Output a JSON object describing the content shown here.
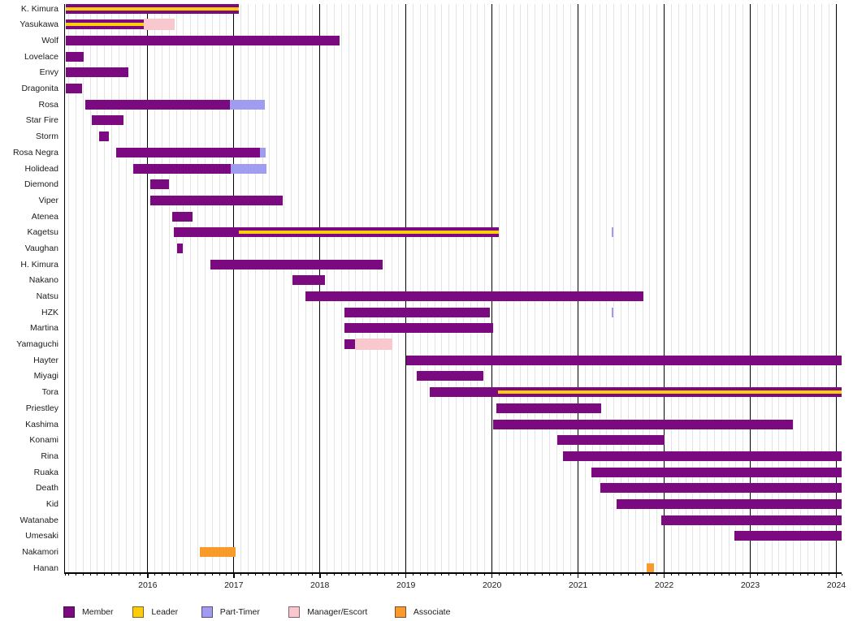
{
  "chart_data": {
    "type": "gantt-timeline",
    "x_axis": {
      "period_start": 2015.046,
      "period_end": 2024.066,
      "year_labels": [
        "2016",
        "2017",
        "2018",
        "2019",
        "2020",
        "2021",
        "2022",
        "2023",
        "2024"
      ],
      "minor_grid": "monthly",
      "grid": true
    },
    "legend_position": "bottom-left",
    "legend": [
      {
        "id": "member",
        "label": "Member",
        "color": "#7b0a80"
      },
      {
        "id": "leader",
        "label": "Leader",
        "color": "#fccd0a"
      },
      {
        "id": "part_timer",
        "label": "Part-Timer",
        "color": "#a09cef"
      },
      {
        "id": "manager",
        "label": "Manager/Escort",
        "color": "#f8c8ce"
      },
      {
        "id": "associate",
        "label": "Associate",
        "color": "#f89b2a"
      }
    ],
    "rows": [
      {
        "label": "K. Kimura",
        "segments": [
          {
            "role": "member",
            "start": 2015.046,
            "end": 2017.057
          },
          {
            "role": "leader",
            "start": 2015.046,
            "end": 2017.057
          }
        ]
      },
      {
        "label": "Yasukawa",
        "segments": [
          {
            "role": "member",
            "start": 2015.046,
            "end": 2015.956
          },
          {
            "role": "leader",
            "start": 2015.046,
            "end": 2015.956
          },
          {
            "role": "manager",
            "start": 2015.956,
            "end": 2016.315
          }
        ]
      },
      {
        "label": "Wolf",
        "segments": [
          {
            "role": "member",
            "start": 2015.046,
            "end": 2018.228
          }
        ]
      },
      {
        "label": "Lovelace",
        "segments": [
          {
            "role": "member",
            "start": 2015.046,
            "end": 2015.254
          }
        ]
      },
      {
        "label": "Envy",
        "segments": [
          {
            "role": "member",
            "start": 2015.046,
            "end": 2015.775
          }
        ]
      },
      {
        "label": "Dragonita",
        "segments": [
          {
            "role": "member",
            "start": 2015.046,
            "end": 2015.233
          }
        ]
      },
      {
        "label": "Rosa",
        "segments": [
          {
            "role": "member",
            "start": 2015.272,
            "end": 2016.959
          },
          {
            "role": "part_timer",
            "start": 2016.959,
            "end": 2017.365
          }
        ]
      },
      {
        "label": "Star Fire",
        "segments": [
          {
            "role": "member",
            "start": 2015.352,
            "end": 2015.722
          }
        ]
      },
      {
        "label": "Storm",
        "segments": [
          {
            "role": "member",
            "start": 2015.435,
            "end": 2015.549
          }
        ]
      },
      {
        "label": "Rosa Negra",
        "segments": [
          {
            "role": "member",
            "start": 2015.632,
            "end": 2017.307
          },
          {
            "role": "part_timer",
            "start": 2017.307,
            "end": 2017.369
          }
        ]
      },
      {
        "label": "Holidead",
        "segments": [
          {
            "role": "member",
            "start": 2015.83,
            "end": 2016.963
          },
          {
            "role": "part_timer",
            "start": 2016.963,
            "end": 2017.376
          }
        ]
      },
      {
        "label": "Diemond",
        "segments": [
          {
            "role": "member",
            "start": 2016.031,
            "end": 2016.243
          }
        ]
      },
      {
        "label": "Viper",
        "segments": [
          {
            "role": "member",
            "start": 2016.031,
            "end": 2017.573
          }
        ]
      },
      {
        "label": "Atenea",
        "segments": [
          {
            "role": "member",
            "start": 2016.285,
            "end": 2016.518
          }
        ]
      },
      {
        "label": "Kagetsu",
        "segments": [
          {
            "role": "member",
            "start": 2016.305,
            "end": 2020.078
          },
          {
            "role": "leader",
            "start": 2017.059,
            "end": 2020.078
          },
          {
            "role": "part_timer",
            "start": 2021.391,
            "end": 2021.41
          }
        ]
      },
      {
        "label": "Vaughan",
        "segments": [
          {
            "role": "member",
            "start": 2016.34,
            "end": 2016.407
          }
        ]
      },
      {
        "label": "H. Kimura",
        "segments": [
          {
            "role": "member",
            "start": 2016.725,
            "end": 2018.733
          }
        ]
      },
      {
        "label": "Nakano",
        "segments": [
          {
            "role": "member",
            "start": 2017.685,
            "end": 2018.056
          }
        ]
      },
      {
        "label": "Natsu",
        "segments": [
          {
            "role": "member",
            "start": 2017.832,
            "end": 2021.763
          }
        ]
      },
      {
        "label": "HZK",
        "segments": [
          {
            "role": "member",
            "start": 2018.29,
            "end": 2019.978
          },
          {
            "role": "part_timer",
            "start": 2021.391,
            "end": 2021.41
          }
        ]
      },
      {
        "label": "Martina",
        "segments": [
          {
            "role": "member",
            "start": 2018.29,
            "end": 2020.017
          }
        ]
      },
      {
        "label": "Yamaguchi",
        "segments": [
          {
            "role": "member",
            "start": 2018.29,
            "end": 2018.407
          },
          {
            "role": "manager",
            "start": 2018.407,
            "end": 2018.845
          }
        ]
      },
      {
        "label": "Hayter",
        "segments": [
          {
            "role": "member",
            "start": 2019.007,
            "end": 2024.066
          }
        ]
      },
      {
        "label": "Miyagi",
        "segments": [
          {
            "role": "member",
            "start": 2019.129,
            "end": 2019.897
          }
        ]
      },
      {
        "label": "Tora",
        "segments": [
          {
            "role": "member",
            "start": 2019.278,
            "end": 2024.066
          },
          {
            "role": "leader",
            "start": 2020.067,
            "end": 2024.066
          }
        ]
      },
      {
        "label": "Priestley",
        "segments": [
          {
            "role": "member",
            "start": 2020.047,
            "end": 2021.264
          }
        ]
      },
      {
        "label": "Kashima",
        "segments": [
          {
            "role": "member",
            "start": 2020.014,
            "end": 2023.492
          }
        ]
      },
      {
        "label": "Konami",
        "segments": [
          {
            "role": "member",
            "start": 2020.756,
            "end": 2022.0
          }
        ]
      },
      {
        "label": "Rina",
        "segments": [
          {
            "role": "member",
            "start": 2020.825,
            "end": 2024.066
          }
        ]
      },
      {
        "label": "Ruaka",
        "segments": [
          {
            "role": "member",
            "start": 2021.151,
            "end": 2024.066
          }
        ]
      },
      {
        "label": "Death",
        "segments": [
          {
            "role": "member",
            "start": 2021.261,
            "end": 2024.066
          }
        ]
      },
      {
        "label": "Kid",
        "segments": [
          {
            "role": "member",
            "start": 2021.45,
            "end": 2024.066
          }
        ]
      },
      {
        "label": "Watanabe",
        "segments": [
          {
            "role": "member",
            "start": 2021.966,
            "end": 2024.066
          }
        ]
      },
      {
        "label": "Umesaki",
        "segments": [
          {
            "role": "member",
            "start": 2022.812,
            "end": 2024.066
          }
        ]
      },
      {
        "label": "Nakamori",
        "segments": [
          {
            "role": "associate",
            "start": 2016.607,
            "end": 2017.019
          }
        ]
      },
      {
        "label": "Hanan",
        "segments": [
          {
            "role": "associate",
            "start": 2021.8,
            "end": 2021.881
          }
        ]
      }
    ]
  }
}
